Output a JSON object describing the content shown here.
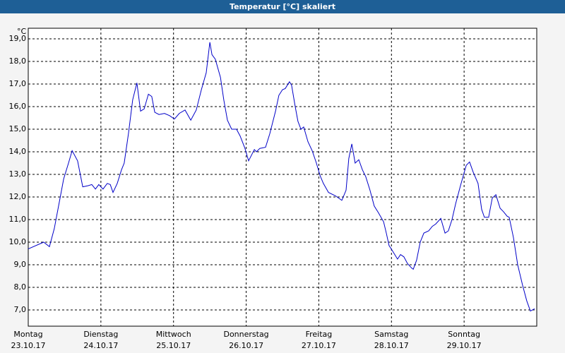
{
  "chart_data": {
    "type": "line",
    "title": "Temperatur [°C] skaliert",
    "y_unit": "°C",
    "xlim": [
      0,
      168
    ],
    "xticks": [
      {
        "value": 0,
        "label": "Montag",
        "date": "23.10.17"
      },
      {
        "value": 24,
        "label": "Dienstag",
        "date": "24.10.17"
      },
      {
        "value": 48,
        "label": "Mittwoch",
        "date": "25.10.17"
      },
      {
        "value": 72,
        "label": "Donnerstag",
        "date": "26.10.17"
      },
      {
        "value": 96,
        "label": "Freitag",
        "date": "27.10.17"
      },
      {
        "value": 120,
        "label": "Samstag",
        "date": "28.10.17"
      },
      {
        "value": 144,
        "label": "Sonntag",
        "date": "29.10.17"
      }
    ],
    "ylim": [
      6.28,
      19.47
    ],
    "yticks": [
      {
        "value": 7,
        "label": "7,0"
      },
      {
        "value": 8,
        "label": "8,0"
      },
      {
        "value": 9,
        "label": "9,0"
      },
      {
        "value": 10,
        "label": "10,0"
      },
      {
        "value": 11,
        "label": "11,0"
      },
      {
        "value": 12,
        "label": "12,0"
      },
      {
        "value": 13,
        "label": "13,0"
      },
      {
        "value": 14,
        "label": "14,0"
      },
      {
        "value": 15,
        "label": "15,0"
      },
      {
        "value": 16,
        "label": "16,0"
      },
      {
        "value": 17,
        "label": "17,0"
      },
      {
        "value": 18,
        "label": "18,0"
      },
      {
        "value": 19,
        "label": "19,0"
      }
    ],
    "grid": true,
    "series": [
      {
        "color": "#0000c8",
        "x": [
          0,
          5.1,
          7.0,
          8.6,
          10.3,
          11.7,
          13.3,
          14.5,
          16.3,
          18.0,
          19.8,
          21.0,
          22.2,
          23.3,
          24.7,
          26.1,
          27.1,
          28.0,
          29.4,
          30.8,
          31.7,
          33.1,
          34.5,
          35.9,
          37.1,
          38.3,
          39.7,
          40.8,
          41.8,
          43.2,
          45.0,
          46.7,
          48.3,
          49.9,
          51.8,
          53.7,
          55.5,
          57.2,
          58.8,
          60.0,
          60.7,
          61.8,
          63.5,
          64.6,
          65.8,
          67.2,
          68.8,
          70.0,
          71.6,
          72.8,
          74.7,
          75.4,
          76.5,
          78.4,
          79.8,
          81.7,
          82.8,
          84.0,
          84.9,
          86.3,
          87.0,
          88.2,
          89.1,
          90.1,
          91.0,
          92.4,
          93.8,
          95.2,
          96.4,
          97.5,
          99.2,
          101.5,
          103.6,
          105.0,
          105.9,
          106.9,
          108.0,
          109.2,
          110.4,
          111.5,
          112.9,
          114.3,
          115.7,
          117.4,
          118.3,
          119.2,
          120.4,
          122.0,
          123.0,
          124.1,
          125.3,
          126.7,
          127.2,
          128.3,
          129.5,
          130.7,
          132.3,
          133.5,
          134.6,
          136.3,
          137.7,
          138.8,
          140.0,
          141.2,
          142.8,
          144.7,
          145.8,
          147.0,
          148.6,
          149.8,
          150.7,
          152.1,
          153.3,
          154.5,
          155.9,
          157.0,
          158.2,
          158.9,
          160.3,
          161.7,
          163.3,
          164.7,
          165.9,
          167.3
        ],
        "values": [
          9.7,
          10.0,
          9.8,
          10.6,
          11.8,
          12.8,
          13.5,
          14.05,
          13.6,
          12.45,
          12.5,
          12.55,
          12.35,
          12.55,
          12.35,
          12.6,
          12.55,
          12.2,
          12.6,
          13.2,
          13.5,
          14.8,
          16.3,
          17.05,
          15.8,
          15.9,
          16.55,
          16.45,
          15.75,
          15.65,
          15.7,
          15.6,
          15.45,
          15.7,
          15.85,
          15.4,
          15.85,
          16.75,
          17.5,
          18.85,
          18.3,
          18.1,
          17.3,
          16.3,
          15.4,
          15.0,
          15.0,
          14.7,
          14.15,
          13.6,
          14.1,
          14.0,
          14.15,
          14.2,
          14.8,
          15.8,
          16.5,
          16.75,
          16.8,
          17.1,
          16.95,
          16.0,
          15.35,
          15.0,
          15.1,
          14.45,
          14.05,
          13.5,
          12.95,
          12.6,
          12.2,
          12.05,
          11.85,
          12.3,
          13.7,
          14.35,
          13.5,
          13.65,
          13.2,
          12.9,
          12.3,
          11.6,
          11.3,
          10.9,
          10.4,
          9.85,
          9.6,
          9.25,
          9.45,
          9.35,
          9.05,
          8.85,
          8.8,
          9.2,
          10.0,
          10.4,
          10.5,
          10.7,
          10.8,
          11.05,
          10.4,
          10.5,
          11.0,
          11.7,
          12.5,
          13.4,
          13.55,
          13.1,
          12.6,
          11.45,
          11.1,
          11.1,
          11.95,
          12.1,
          11.5,
          11.35,
          11.15,
          11.1,
          10.2,
          9.0,
          8.1,
          7.4,
          6.95,
          7.05
        ]
      }
    ]
  }
}
